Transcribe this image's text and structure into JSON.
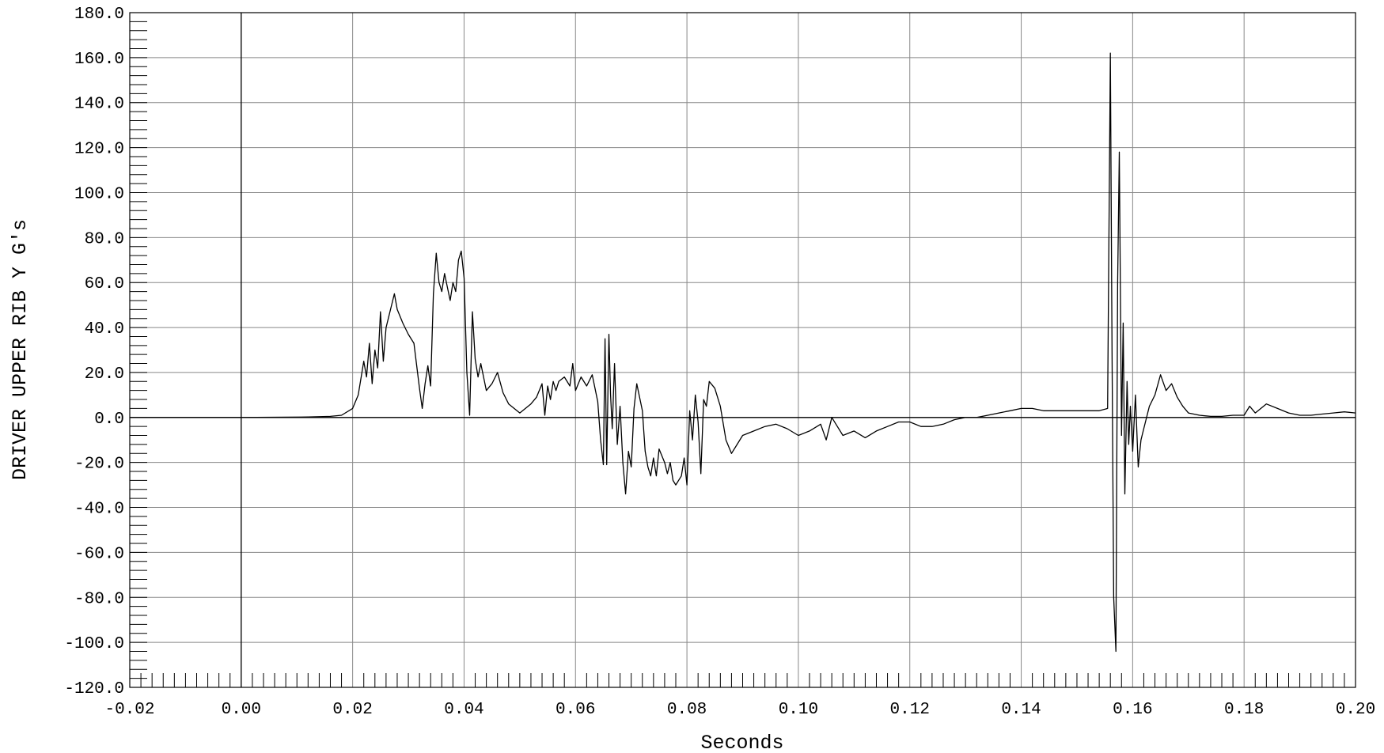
{
  "chart_data": {
    "type": "line",
    "title": "",
    "xlabel": "Seconds",
    "ylabel": "DRIVER UPPER RIB Y G's",
    "xlim": [
      -0.02,
      0.2
    ],
    "ylim": [
      -120.0,
      180.0
    ],
    "x_ticks": [
      "-0.02",
      "0.00",
      "0.02",
      "0.04",
      "0.06",
      "0.08",
      "0.10",
      "0.12",
      "0.14",
      "0.16",
      "0.18",
      "0.20"
    ],
    "y_ticks": [
      "180.0",
      "160.0",
      "140.0",
      "120.0",
      "100.0",
      "80.0",
      "60.0",
      "40.0",
      "20.0",
      "0.0",
      "-20.0",
      "-40.0",
      "-60.0",
      "-80.0",
      "-100.0",
      "-120.0"
    ],
    "grid": true,
    "series": [
      {
        "color": "#000000",
        "x": [
          -0.02,
          0.0,
          0.012,
          0.016,
          0.018,
          0.02,
          0.021,
          0.022,
          0.0225,
          0.023,
          0.0235,
          0.024,
          0.0245,
          0.025,
          0.0255,
          0.026,
          0.0265,
          0.027,
          0.0275,
          0.028,
          0.029,
          0.03,
          0.031,
          0.032,
          0.0325,
          0.033,
          0.0335,
          0.034,
          0.0345,
          0.035,
          0.0355,
          0.036,
          0.0365,
          0.037,
          0.0375,
          0.038,
          0.0385,
          0.039,
          0.0395,
          0.04,
          0.0405,
          0.041,
          0.0415,
          0.042,
          0.0425,
          0.043,
          0.044,
          0.045,
          0.046,
          0.047,
          0.048,
          0.05,
          0.052,
          0.053,
          0.054,
          0.0545,
          0.055,
          0.0555,
          0.056,
          0.0565,
          0.057,
          0.058,
          0.059,
          0.0595,
          0.06,
          0.061,
          0.062,
          0.063,
          0.064,
          0.0645,
          0.065,
          0.0653,
          0.0656,
          0.066,
          0.0663,
          0.0666,
          0.067,
          0.0675,
          0.068,
          0.0685,
          0.069,
          0.0695,
          0.07,
          0.0705,
          0.071,
          0.072,
          0.0725,
          0.073,
          0.0735,
          0.074,
          0.0745,
          0.075,
          0.076,
          0.0765,
          0.077,
          0.0775,
          0.078,
          0.079,
          0.0795,
          0.08,
          0.0805,
          0.081,
          0.0815,
          0.082,
          0.0825,
          0.083,
          0.0835,
          0.084,
          0.085,
          0.086,
          0.087,
          0.088,
          0.089,
          0.09,
          0.092,
          0.094,
          0.096,
          0.098,
          0.1,
          0.102,
          0.104,
          0.105,
          0.106,
          0.107,
          0.108,
          0.11,
          0.112,
          0.114,
          0.116,
          0.118,
          0.12,
          0.122,
          0.124,
          0.126,
          0.128,
          0.13,
          0.132,
          0.134,
          0.136,
          0.138,
          0.14,
          0.142,
          0.144,
          0.146,
          0.148,
          0.15,
          0.152,
          0.154,
          0.1555,
          0.156,
          0.1563,
          0.1566,
          0.157,
          0.1573,
          0.1576,
          0.158,
          0.1583,
          0.1586,
          0.159,
          0.1593,
          0.1596,
          0.16,
          0.1605,
          0.161,
          0.1615,
          0.162,
          0.163,
          0.164,
          0.165,
          0.166,
          0.167,
          0.168,
          0.169,
          0.17,
          0.172,
          0.174,
          0.176,
          0.178,
          0.18,
          0.181,
          0.182,
          0.184,
          0.186,
          0.188,
          0.19,
          0.192,
          0.194,
          0.196,
          0.198,
          0.2
        ],
        "y": [
          0.0,
          0.0,
          0.2,
          0.5,
          1.0,
          4.0,
          10.0,
          25.0,
          18.0,
          33.0,
          15.0,
          30.0,
          22.0,
          47.0,
          25.0,
          40.0,
          45.0,
          50.0,
          55.0,
          48.0,
          42.0,
          37.0,
          33.0,
          13.0,
          4.0,
          15.0,
          23.0,
          14.0,
          55.0,
          73.0,
          60.0,
          56.0,
          64.0,
          58.0,
          52.0,
          60.0,
          56.0,
          70.0,
          74.0,
          62.0,
          20.0,
          1.0,
          47.0,
          26.0,
          18.0,
          24.0,
          12.0,
          15.0,
          20.0,
          11.0,
          6.0,
          2.0,
          6.0,
          9.0,
          15.0,
          1.0,
          14.0,
          8.0,
          16.0,
          12.0,
          16.0,
          18.0,
          14.0,
          24.0,
          12.0,
          18.0,
          14.0,
          19.0,
          7.0,
          -10.0,
          -21.0,
          35.0,
          -21.0,
          37.0,
          10.0,
          -5.0,
          24.0,
          -12.0,
          5.0,
          -20.0,
          -34.0,
          -15.0,
          -22.0,
          4.0,
          15.0,
          3.0,
          -15.0,
          -22.0,
          -26.0,
          -18.0,
          -26.0,
          -14.0,
          -20.0,
          -25.0,
          -20.0,
          -28.0,
          -30.0,
          -26.0,
          -18.0,
          -30.0,
          3.0,
          -10.0,
          10.0,
          -2.0,
          -25.0,
          8.0,
          5.0,
          16.0,
          13.0,
          5.0,
          -10.0,
          -16.0,
          -12.0,
          -8.0,
          -6.0,
          -4.0,
          -3.0,
          -5.0,
          -8.0,
          -6.0,
          -3.0,
          -10.0,
          0.0,
          -4.0,
          -8.0,
          -6.0,
          -9.0,
          -6.0,
          -4.0,
          -2.0,
          -2.0,
          -4.0,
          -4.0,
          -3.0,
          -1.0,
          0.0,
          0.0,
          1.0,
          2.0,
          3.0,
          4.0,
          4.0,
          3.0,
          3.0,
          3.0,
          3.0,
          3.0,
          3.0,
          4.0,
          162.0,
          30.0,
          -80.0,
          -104.0,
          60.0,
          118.0,
          -8.0,
          42.0,
          -34.0,
          16.0,
          -12.0,
          5.0,
          -15.0,
          10.0,
          -22.0,
          -10.0,
          -5.0,
          5.0,
          10.0,
          19.0,
          12.0,
          15.0,
          9.0,
          5.0,
          2.0,
          1.0,
          0.5,
          0.5,
          1.0,
          1.0,
          5.0,
          2.0,
          6.0,
          4.0,
          2.0,
          1.0,
          1.0,
          1.5,
          2.0,
          2.5,
          2.0
        ]
      }
    ]
  }
}
